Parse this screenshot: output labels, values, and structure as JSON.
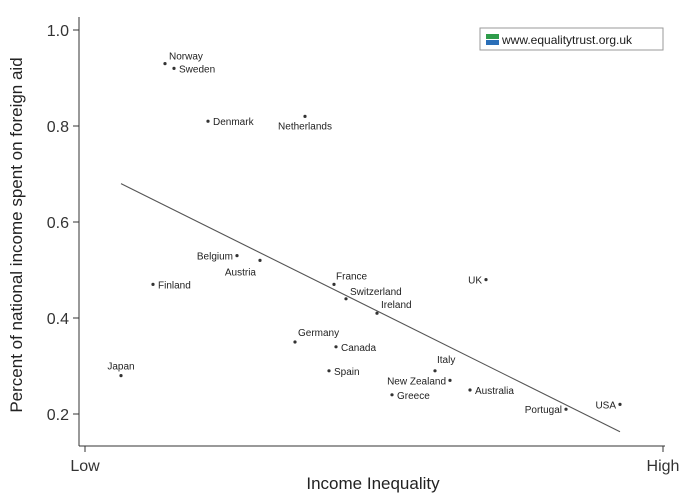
{
  "chart_data": {
    "type": "scatter",
    "title": "",
    "xlabel": "Income Inequality",
    "ylabel": "Percent of national income spent on foreign aid",
    "x_tick_labels": {
      "low": "Low",
      "high": "High"
    },
    "ylim": [
      0.15,
      1.02
    ],
    "y_ticks": [
      0.2,
      0.4,
      0.6,
      0.8,
      1.0
    ],
    "y_tick_labels": [
      "0.2",
      "0.4",
      "0.6",
      "0.8",
      "1.0"
    ],
    "grid": false,
    "legend": "none",
    "watermark": "www.equalitytrust.org.uk",
    "colors": {
      "points": "#333333",
      "trend": "#555555",
      "logo_top": "#2e9c4a",
      "logo_bottom": "#2a6fb8"
    },
    "points": [
      {
        "label": "Norway",
        "x": 165,
        "y": 0.93
      },
      {
        "label": "Sweden",
        "x": 174,
        "y": 0.92
      },
      {
        "label": "Denmark",
        "x": 208,
        "y": 0.81
      },
      {
        "label": "Netherlands",
        "x": 305,
        "y": 0.82
      },
      {
        "label": "Belgium",
        "x": 237,
        "y": 0.53
      },
      {
        "label": "Austria",
        "x": 260,
        "y": 0.52
      },
      {
        "label": "Finland",
        "x": 153,
        "y": 0.47
      },
      {
        "label": "France",
        "x": 334,
        "y": 0.47
      },
      {
        "label": "Switzerland",
        "x": 346,
        "y": 0.44
      },
      {
        "label": "Ireland",
        "x": 377,
        "y": 0.41
      },
      {
        "label": "UK",
        "x": 486,
        "y": 0.48
      },
      {
        "label": "Germany",
        "x": 295,
        "y": 0.35
      },
      {
        "label": "Canada",
        "x": 336,
        "y": 0.34
      },
      {
        "label": "Spain",
        "x": 329,
        "y": 0.29
      },
      {
        "label": "Japan",
        "x": 121,
        "y": 0.28
      },
      {
        "label": "Italy",
        "x": 435,
        "y": 0.29
      },
      {
        "label": "New Zealand",
        "x": 450,
        "y": 0.27
      },
      {
        "label": "Australia",
        "x": 470,
        "y": 0.25
      },
      {
        "label": "Greece",
        "x": 392,
        "y": 0.24
      },
      {
        "label": "Portugal",
        "x": 566,
        "y": 0.21
      },
      {
        "label": "USA",
        "x": 620,
        "y": 0.22
      }
    ],
    "trendline": [
      {
        "x": 121,
        "y": 0.68
      },
      {
        "x": 620,
        "y": 0.163
      }
    ]
  }
}
